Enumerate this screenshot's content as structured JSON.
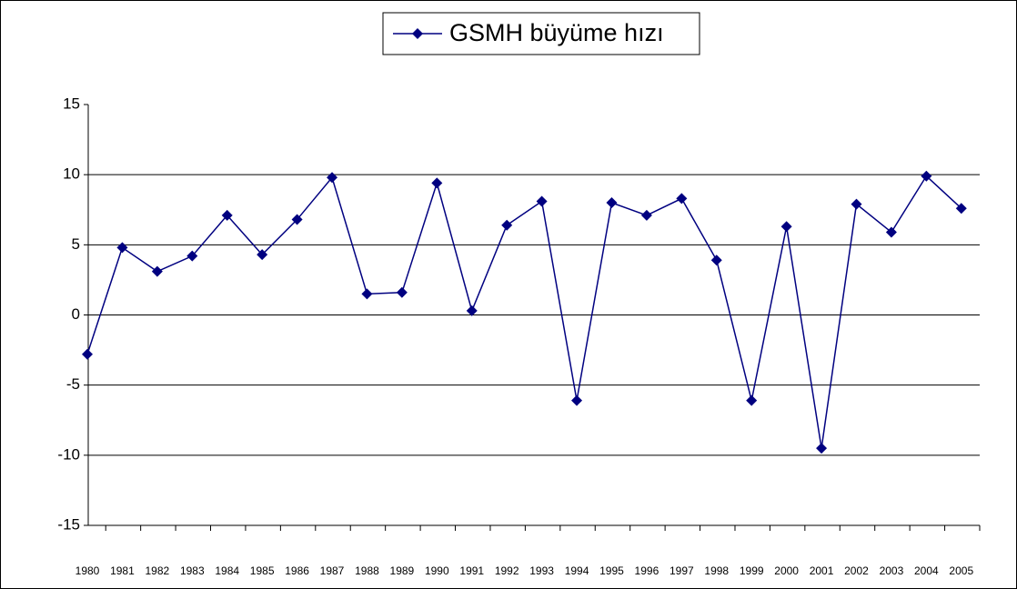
{
  "chart_data": {
    "type": "line",
    "categories": [
      "1980",
      "1981",
      "1982",
      "1983",
      "1984",
      "1985",
      "1986",
      "1987",
      "1988",
      "1989",
      "1990",
      "1991",
      "1992",
      "1993",
      "1994",
      "1995",
      "1996",
      "1997",
      "1998",
      "1999",
      "2000",
      "2001",
      "2002",
      "2003",
      "2004",
      "2005"
    ],
    "series": [
      {
        "name": "GSMH büyüme hızı",
        "color": "#000080",
        "values": [
          -2.8,
          4.8,
          3.1,
          4.2,
          7.1,
          4.3,
          6.8,
          9.8,
          1.5,
          1.6,
          9.4,
          0.3,
          6.4,
          8.1,
          -6.1,
          8.0,
          7.1,
          8.3,
          3.9,
          -6.1,
          6.3,
          -9.5,
          7.9,
          5.9,
          9.9,
          7.6
        ]
      }
    ],
    "ylim": [
      -15,
      15
    ],
    "yticks": [
      -15,
      -10,
      -5,
      0,
      5,
      10,
      15
    ],
    "grid": true,
    "legend": "top"
  }
}
